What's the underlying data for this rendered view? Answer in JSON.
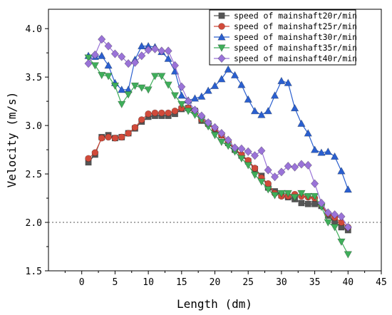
{
  "chart_data": {
    "type": "line",
    "xlabel": "Length (dm)",
    "ylabel": "Velocity (m/s)",
    "xlim": [
      -5,
      45
    ],
    "ylim": [
      1.5,
      4.2
    ],
    "x_ticks": [
      0,
      5,
      10,
      15,
      20,
      25,
      30,
      35,
      40,
      45
    ],
    "y_ticks": [
      1.5,
      2.0,
      2.5,
      3.0,
      3.5,
      4.0
    ],
    "x_tick_labels": [
      "0",
      "5",
      "10",
      "15",
      "20",
      "25",
      "30",
      "35",
      "40",
      "45"
    ],
    "y_tick_labels": [
      "1.5",
      "2.0",
      "2.5",
      "3.0",
      "3.5",
      "4.0"
    ],
    "reference_line": {
      "y": 2.0,
      "style": "dotted",
      "color": "#555555"
    },
    "legend_position": "top-right",
    "grid": false,
    "x": [
      1,
      2,
      3,
      4,
      5,
      6,
      7,
      8,
      9,
      10,
      11,
      12,
      13,
      14,
      15,
      16,
      17,
      18,
      19,
      20,
      21,
      22,
      23,
      24,
      25,
      26,
      27,
      28,
      29,
      30,
      31,
      32,
      33,
      34,
      35,
      36,
      37,
      38,
      39,
      40
    ],
    "series": [
      {
        "name": "speed of mainshaft20r/min",
        "color": "#555555",
        "marker": "square",
        "values": [
          2.62,
          2.7,
          2.88,
          2.9,
          2.87,
          2.88,
          2.92,
          2.97,
          3.04,
          3.09,
          3.1,
          3.1,
          3.1,
          3.12,
          3.17,
          3.18,
          3.15,
          3.05,
          3.02,
          2.96,
          2.9,
          2.82,
          2.75,
          2.69,
          2.63,
          2.55,
          2.48,
          2.36,
          2.32,
          2.28,
          2.26,
          2.24,
          2.2,
          2.19,
          2.19,
          2.17,
          2.07,
          2.0,
          1.95,
          1.92
        ]
      },
      {
        "name": "speed of mainshaft25r/min",
        "color": "#d14a3a",
        "marker": "circle",
        "values": [
          2.66,
          2.72,
          2.87,
          2.88,
          2.87,
          2.88,
          2.92,
          2.98,
          3.06,
          3.12,
          3.13,
          3.13,
          3.13,
          3.15,
          3.18,
          3.18,
          3.15,
          3.06,
          3.01,
          2.97,
          2.9,
          2.83,
          2.76,
          2.7,
          2.64,
          2.56,
          2.46,
          2.4,
          2.3,
          2.27,
          2.27,
          2.29,
          2.27,
          2.26,
          2.25,
          2.18,
          2.09,
          2.05,
          2.0,
          1.95
        ]
      },
      {
        "name": "speed of mainshaft30r/min",
        "color": "#2a5fcf",
        "marker": "triangle-up",
        "values": [
          3.72,
          3.71,
          3.72,
          3.62,
          3.44,
          3.37,
          3.37,
          3.68,
          3.82,
          3.82,
          3.81,
          3.76,
          3.69,
          3.56,
          3.31,
          3.26,
          3.28,
          3.3,
          3.36,
          3.41,
          3.48,
          3.58,
          3.52,
          3.42,
          3.27,
          3.15,
          3.11,
          3.15,
          3.31,
          3.46,
          3.44,
          3.18,
          3.02,
          2.92,
          2.75,
          2.72,
          2.73,
          2.68,
          2.53,
          2.34
        ]
      },
      {
        "name": "speed of mainshaft35r/min",
        "color": "#3fae5a",
        "marker": "triangle-down",
        "values": [
          3.7,
          3.62,
          3.52,
          3.51,
          3.41,
          3.22,
          3.32,
          3.41,
          3.39,
          3.37,
          3.51,
          3.51,
          3.42,
          3.31,
          3.22,
          3.15,
          3.11,
          3.06,
          2.99,
          2.9,
          2.83,
          2.79,
          2.73,
          2.66,
          2.59,
          2.49,
          2.42,
          2.34,
          2.28,
          2.3,
          2.3,
          2.26,
          2.3,
          2.27,
          2.27,
          2.16,
          2.0,
          1.95,
          1.8,
          1.67
        ]
      },
      {
        "name": "speed of mainshaft40r/min",
        "color": "#9a73d8",
        "marker": "diamond",
        "values": [
          3.64,
          3.73,
          3.89,
          3.82,
          3.74,
          3.71,
          3.64,
          3.65,
          3.72,
          3.78,
          3.79,
          3.77,
          3.77,
          3.62,
          3.4,
          3.25,
          3.16,
          3.1,
          3.03,
          2.98,
          2.92,
          2.85,
          2.77,
          2.76,
          2.73,
          2.69,
          2.74,
          2.54,
          2.47,
          2.52,
          2.58,
          2.57,
          2.6,
          2.59,
          2.4,
          2.2,
          2.1,
          2.08,
          2.06,
          1.95
        ]
      }
    ]
  }
}
